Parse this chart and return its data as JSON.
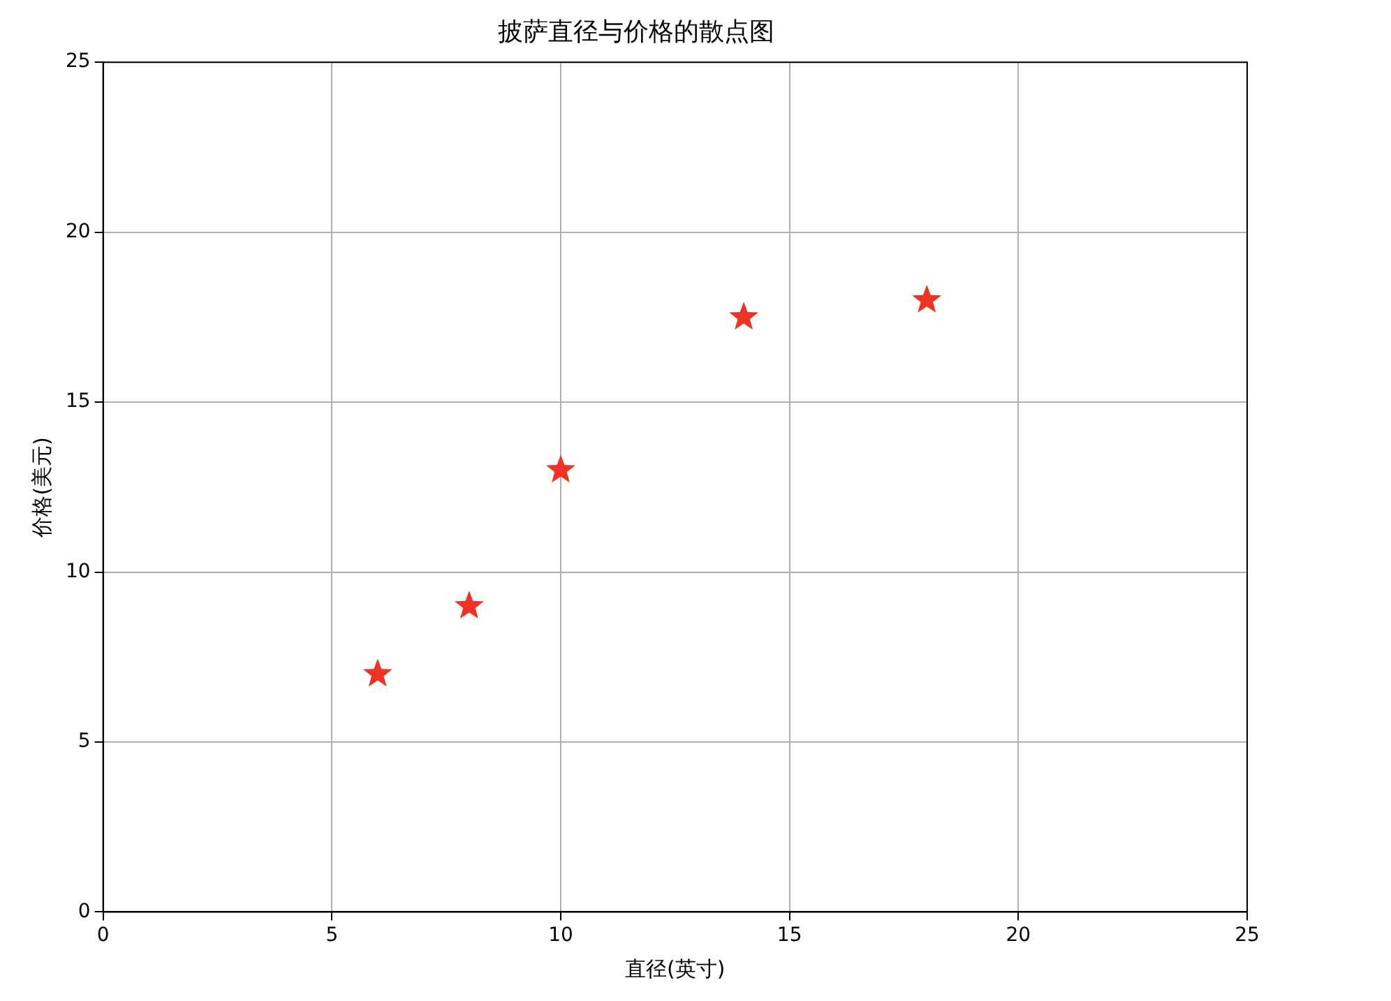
{
  "chart_data": {
    "type": "scatter",
    "title": "披萨直径与价格的散点图",
    "xlabel": "直径(英寸)",
    "ylabel": "价格(美元)",
    "x": [
      6,
      8,
      10,
      14,
      18
    ],
    "series": [
      {
        "color": "#ee3224",
        "values": [
          7,
          9,
          13,
          17.5,
          18
        ]
      }
    ],
    "xlim": [
      0,
      25
    ],
    "ylim": [
      0,
      25
    ],
    "xticks": [
      0,
      5,
      10,
      15,
      20,
      25
    ],
    "yticks": [
      0,
      5,
      10,
      15,
      20,
      25
    ],
    "grid": true,
    "marker": "star",
    "legend": false
  }
}
